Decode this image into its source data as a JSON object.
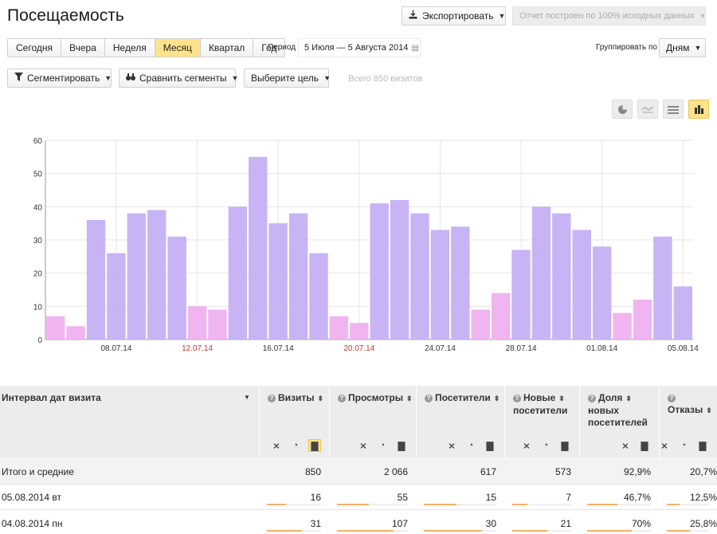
{
  "header": {
    "title": "Посещаемость",
    "export_label": "Экспортировать",
    "report_status": "Отчет построен по 100% исходных данных"
  },
  "period": {
    "buttons": [
      "Сегодня",
      "Вчера",
      "Неделя",
      "Месяц",
      "Квартал",
      "Год"
    ],
    "active": "Месяц",
    "label": "Период",
    "range": "5 Июля — 5 Августа 2014"
  },
  "grouping": {
    "label": "Группировать по",
    "value": "Дням"
  },
  "filters": {
    "segment_label": "Сегментировать",
    "compare_label": "Сравнить сегменты",
    "goal_label": "Выберите цель",
    "total_visits": "Всего 850 визитов"
  },
  "chart_icons": [
    "pie-chart-icon",
    "line-chart-icon",
    "area-chart-icon",
    "bar-chart-icon"
  ],
  "chart_data": {
    "type": "bar",
    "categories": [
      "05.07",
      "06.07",
      "07.07",
      "08.07",
      "09.07",
      "10.07",
      "11.07",
      "12.07",
      "13.07",
      "14.07",
      "15.07",
      "16.07",
      "17.07",
      "18.07",
      "19.07",
      "20.07",
      "21.07",
      "22.07",
      "23.07",
      "24.07",
      "25.07",
      "26.07",
      "27.07",
      "28.07",
      "29.07",
      "30.07",
      "31.07",
      "01.08",
      "02.08",
      "03.08",
      "04.08",
      "05.08"
    ],
    "values": [
      7,
      4,
      36,
      26,
      38,
      39,
      31,
      10,
      9,
      40,
      55,
      35,
      38,
      26,
      7,
      5,
      41,
      42,
      38,
      33,
      34,
      9,
      14,
      27,
      40,
      38,
      33,
      28,
      8,
      12,
      31,
      16
    ],
    "weekend": [
      true,
      true,
      false,
      false,
      false,
      false,
      false,
      true,
      true,
      false,
      false,
      false,
      false,
      false,
      true,
      true,
      false,
      false,
      false,
      false,
      false,
      true,
      true,
      false,
      false,
      false,
      false,
      false,
      true,
      true,
      false,
      false
    ],
    "x_tick_labels": [
      "08.07.14",
      "12.07.14",
      "16.07.14",
      "20.07.14",
      "24.07.14",
      "28.07.14",
      "01.08.14",
      "05.08.14"
    ],
    "x_tick_indices": [
      3,
      7,
      11,
      15,
      19,
      23,
      27,
      31
    ],
    "x_tick_weekend": [
      false,
      true,
      false,
      true,
      false,
      false,
      false,
      false
    ],
    "y_ticks": [
      0,
      10,
      20,
      30,
      40,
      50,
      60
    ],
    "ylim": [
      0,
      60
    ],
    "colors": {
      "weekday": "#c8b4f4",
      "weekend": "#f0b4f0",
      "weekend_label": "#c0392b"
    }
  },
  "table": {
    "dim_header": "Интервал дат визита",
    "columns": [
      {
        "label": "Визиты",
        "lines": [
          "Визиты"
        ]
      },
      {
        "label": "Просмотры",
        "lines": [
          "Просмотры"
        ]
      },
      {
        "label": "Посетители",
        "lines": [
          "Посетители"
        ]
      },
      {
        "label": "Новые посетители",
        "lines": [
          "Новые",
          "посетители"
        ]
      },
      {
        "label": "Доля новых посетителей",
        "lines": [
          "Доля",
          "новых",
          "посетителей"
        ]
      },
      {
        "label": "Отказы",
        "lines": [
          "Отказы"
        ]
      }
    ],
    "total": {
      "label": "Итого и средние",
      "values": [
        "850",
        "2 066",
        "617",
        "573",
        "92,9%",
        "20,7%"
      ]
    },
    "rows": [
      {
        "label": "05.08.2014 вт",
        "values": [
          "16",
          "55",
          "15",
          "7",
          "46,7%",
          "12,5%"
        ],
        "fractions": [
          0.35,
          0.45,
          0.45,
          0.25,
          0.47,
          0.3
        ]
      },
      {
        "label": "04.08.2014 пн",
        "values": [
          "31",
          "107",
          "30",
          "21",
          "70%",
          "25,8%"
        ],
        "fractions": [
          0.65,
          0.8,
          0.8,
          0.6,
          0.7,
          0.55
        ]
      }
    ]
  }
}
